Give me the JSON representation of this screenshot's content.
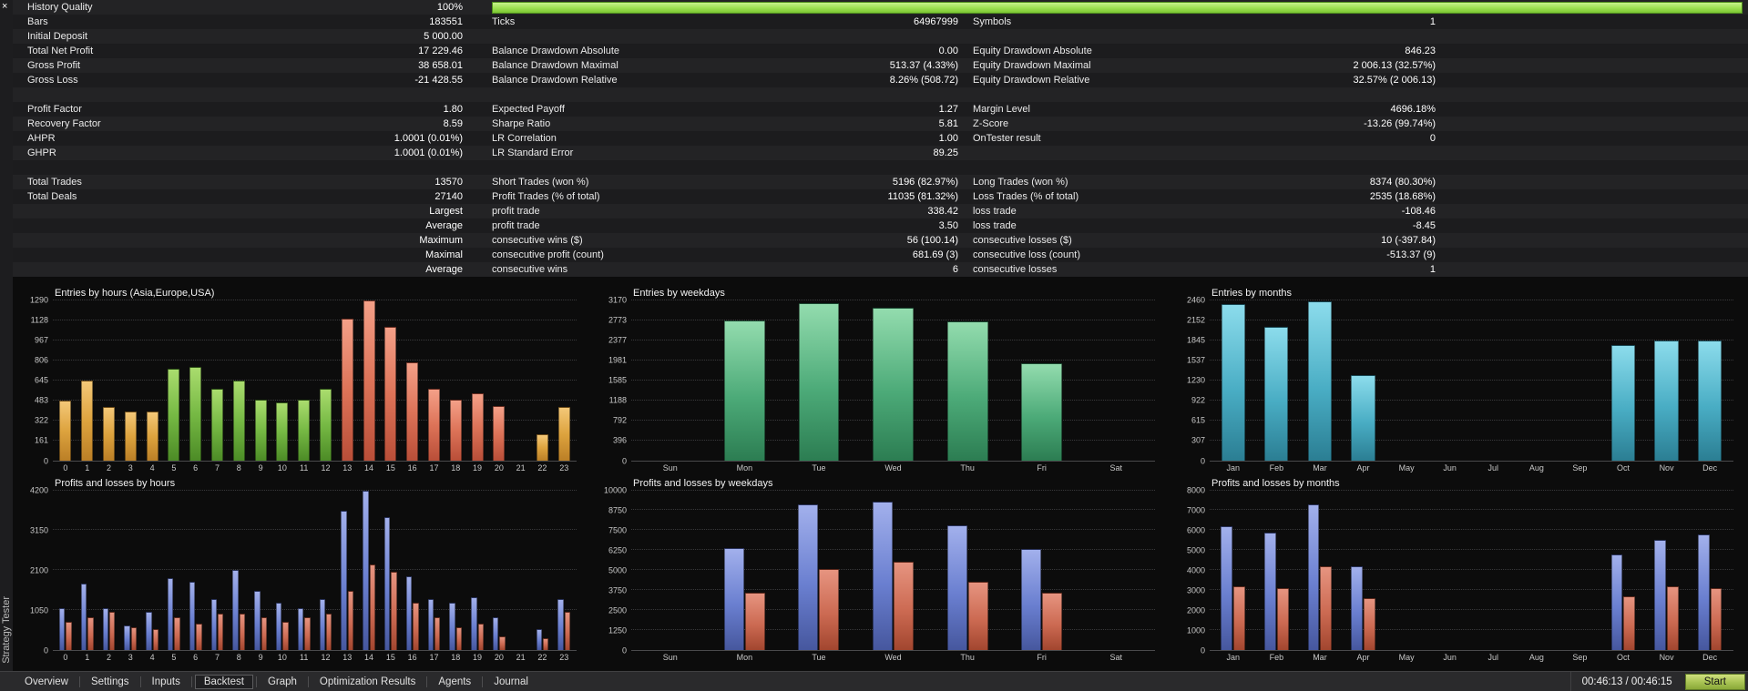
{
  "left_rail": {
    "title": "Strategy Tester",
    "close_glyph": "×"
  },
  "stats": {
    "rows": [
      {
        "quality_bar": true,
        "cells": [
          {
            "l": "History Quality",
            "v": "100%"
          }
        ]
      },
      {
        "cells": [
          {
            "l": "Bars",
            "v": "183551"
          },
          {
            "l": "Ticks",
            "v": "64967999"
          },
          {
            "l": "Symbols",
            "v": "1"
          }
        ]
      },
      {
        "cells": [
          {
            "l": "Initial Deposit",
            "v": "5 000.00"
          }
        ]
      },
      {
        "cells": [
          {
            "l": "Total Net Profit",
            "v": "17 229.46"
          },
          {
            "l": "Balance Drawdown Absolute",
            "v": "0.00"
          },
          {
            "l": "Equity Drawdown Absolute",
            "v": "846.23"
          }
        ]
      },
      {
        "cells": [
          {
            "l": "Gross Profit",
            "v": "38 658.01"
          },
          {
            "l": "Balance Drawdown Maximal",
            "v": "513.37 (4.33%)"
          },
          {
            "l": "Equity Drawdown Maximal",
            "v": "2 006.13 (32.57%)"
          }
        ]
      },
      {
        "cells": [
          {
            "l": "Gross Loss",
            "v": "-21 428.55"
          },
          {
            "l": "Balance Drawdown Relative",
            "v": "8.26% (508.72)"
          },
          {
            "l": "Equity Drawdown Relative",
            "v": "32.57% (2 006.13)"
          }
        ]
      },
      {
        "blank": true
      },
      {
        "cells": [
          {
            "l": "Profit Factor",
            "v": "1.80"
          },
          {
            "l": "Expected Payoff",
            "v": "1.27"
          },
          {
            "l": "Margin Level",
            "v": "4696.18%"
          }
        ]
      },
      {
        "cells": [
          {
            "l": "Recovery Factor",
            "v": "8.59"
          },
          {
            "l": "Sharpe Ratio",
            "v": "5.81"
          },
          {
            "l": "Z-Score",
            "v": "-13.26 (99.74%)"
          }
        ]
      },
      {
        "cells": [
          {
            "l": "AHPR",
            "v": "1.0001 (0.01%)"
          },
          {
            "l": "LR Correlation",
            "v": "1.00"
          },
          {
            "l": "OnTester result",
            "v": "0"
          }
        ]
      },
      {
        "cells": [
          {
            "l": "GHPR",
            "v": "1.0001 (0.01%)"
          },
          {
            "l": "LR Standard Error",
            "v": "89.25"
          }
        ]
      },
      {
        "blank": true
      },
      {
        "cells": [
          {
            "l": "Total Trades",
            "v": "13570"
          },
          {
            "l": "Short Trades (won %)",
            "v": "5196 (82.97%)"
          },
          {
            "l": "Long Trades (won %)",
            "v": "8374 (80.30%)"
          }
        ]
      },
      {
        "cells": [
          {
            "l": "Total Deals",
            "v": "27140"
          },
          {
            "l": "Profit Trades (% of total)",
            "v": "11035 (81.32%)"
          },
          {
            "l": "Loss Trades (% of total)",
            "v": "2535 (18.68%)"
          }
        ]
      },
      {
        "cells": [
          {
            "l": "",
            "v": "Largest"
          },
          {
            "l": "profit trade",
            "v": "338.42"
          },
          {
            "l": "loss trade",
            "v": "-108.46"
          }
        ]
      },
      {
        "cells": [
          {
            "l": "",
            "v": "Average"
          },
          {
            "l": "profit trade",
            "v": "3.50"
          },
          {
            "l": "loss trade",
            "v": "-8.45"
          }
        ]
      },
      {
        "cells": [
          {
            "l": "",
            "v": "Maximum"
          },
          {
            "l": "consecutive wins ($)",
            "v": "56 (100.14)"
          },
          {
            "l": "consecutive losses ($)",
            "v": "10 (-397.84)"
          }
        ]
      },
      {
        "cells": [
          {
            "l": "",
            "v": "Maximal"
          },
          {
            "l": "consecutive profit (count)",
            "v": "681.69 (3)"
          },
          {
            "l": "consecutive loss (count)",
            "v": "-513.37 (9)"
          }
        ]
      },
      {
        "cells": [
          {
            "l": "",
            "v": "Average"
          },
          {
            "l": "consecutive wins",
            "v": "6"
          },
          {
            "l": "consecutive losses",
            "v": "1"
          }
        ]
      }
    ]
  },
  "chart_data": [
    {
      "id": "entries-by-hours",
      "type": "bar",
      "title": "Entries by hours (Asia,Europe,USA)",
      "categories": [
        "0",
        "1",
        "2",
        "3",
        "4",
        "5",
        "6",
        "7",
        "8",
        "9",
        "10",
        "11",
        "12",
        "13",
        "14",
        "15",
        "16",
        "17",
        "18",
        "19",
        "20",
        "21",
        "22",
        "23"
      ],
      "values": [
        480,
        645,
        430,
        390,
        390,
        740,
        750,
        580,
        640,
        490,
        470,
        490,
        580,
        1140,
        1290,
        1080,
        790,
        580,
        490,
        540,
        440,
        0,
        210,
        430
      ],
      "bar_colors": [
        "asia",
        "asia",
        "asia",
        "asia",
        "asia",
        "europe",
        "europe",
        "europe",
        "europe",
        "europe",
        "europe",
        "europe",
        "europe",
        "usa",
        "usa",
        "usa",
        "usa",
        "usa",
        "usa",
        "usa",
        "usa",
        "usa",
        "asia",
        "asia"
      ],
      "ymax": 1290,
      "yticks": [
        1290,
        1128,
        967,
        806,
        645,
        483,
        322,
        161,
        0
      ]
    },
    {
      "id": "entries-by-weekdays",
      "type": "bar",
      "title": "Entries by weekdays",
      "categories": [
        "Sun",
        "Mon",
        "Tue",
        "Wed",
        "Thu",
        "Fri",
        "Sat"
      ],
      "values": [
        0,
        2780,
        3120,
        3030,
        2750,
        1920,
        0
      ],
      "color": "weekday",
      "ymax": 3170,
      "yticks": [
        3170,
        2773,
        2377,
        1981,
        1585,
        1188,
        792,
        396,
        0
      ]
    },
    {
      "id": "entries-by-months",
      "type": "bar",
      "title": "Entries by months",
      "categories": [
        "Jan",
        "Feb",
        "Mar",
        "Apr",
        "May",
        "Jun",
        "Jul",
        "Aug",
        "Sep",
        "Oct",
        "Nov",
        "Dec"
      ],
      "values": [
        2400,
        2060,
        2450,
        1310,
        0,
        0,
        0,
        0,
        0,
        1780,
        1850,
        1840
      ],
      "color": "month",
      "ymax": 2460,
      "yticks": [
        2460,
        2152,
        1845,
        1537,
        1230,
        922,
        615,
        307,
        0
      ]
    },
    {
      "id": "pl-by-hours",
      "type": "bar",
      "title": "Profits and losses by hours",
      "categories": [
        "0",
        "1",
        "2",
        "3",
        "4",
        "5",
        "6",
        "7",
        "8",
        "9",
        "10",
        "11",
        "12",
        "13",
        "14",
        "15",
        "16",
        "17",
        "18",
        "19",
        "20",
        "21",
        "22",
        "23"
      ],
      "series": [
        {
          "name": "profit",
          "color": "profit",
          "values": [
            1100,
            1750,
            1100,
            650,
            1000,
            1900,
            1800,
            1350,
            2100,
            1550,
            1250,
            1100,
            1350,
            3650,
            4200,
            3500,
            1950,
            1350,
            1250,
            1400,
            850,
            0,
            550,
            1350
          ]
        },
        {
          "name": "loss",
          "color": "loss",
          "values": [
            750,
            850,
            1000,
            600,
            550,
            850,
            700,
            950,
            950,
            850,
            750,
            850,
            950,
            1550,
            2250,
            2050,
            1250,
            850,
            600,
            700,
            350,
            0,
            300,
            1000
          ]
        }
      ],
      "ymax": 4200,
      "yticks": [
        4200,
        3150,
        2100,
        1050,
        0
      ]
    },
    {
      "id": "pl-by-weekdays",
      "type": "bar",
      "title": "Profits and losses by weekdays",
      "categories": [
        "Sun",
        "Mon",
        "Tue",
        "Wed",
        "Thu",
        "Fri",
        "Sat"
      ],
      "series": [
        {
          "name": "profit",
          "color": "profit",
          "values": [
            0,
            6400,
            9100,
            9300,
            7800,
            6300,
            0
          ]
        },
        {
          "name": "loss",
          "color": "loss",
          "values": [
            0,
            3600,
            5100,
            5500,
            4300,
            3600,
            0
          ]
        }
      ],
      "ymax": 10000,
      "yticks": [
        10000,
        8750,
        7500,
        6250,
        5000,
        3750,
        2500,
        1250,
        0
      ]
    },
    {
      "id": "pl-by-months",
      "type": "bar",
      "title": "Profits and losses by months",
      "categories": [
        "Jan",
        "Feb",
        "Mar",
        "Apr",
        "May",
        "Jun",
        "Jul",
        "Aug",
        "Sep",
        "Oct",
        "Nov",
        "Dec"
      ],
      "series": [
        {
          "name": "profit",
          "color": "profit",
          "values": [
            6200,
            5900,
            7300,
            4200,
            0,
            0,
            0,
            0,
            0,
            4800,
            5500,
            5800
          ]
        },
        {
          "name": "loss",
          "color": "loss",
          "values": [
            3200,
            3100,
            4200,
            2600,
            0,
            0,
            0,
            0,
            0,
            2700,
            3200,
            3100
          ]
        }
      ],
      "ymax": 8000,
      "yticks": [
        8000,
        7000,
        6000,
        5000,
        4000,
        3000,
        2000,
        1000,
        0
      ]
    }
  ],
  "tabs": [
    {
      "label": "Overview"
    },
    {
      "label": "Settings"
    },
    {
      "label": "Inputs"
    },
    {
      "label": "Backtest",
      "selected": true
    },
    {
      "label": "Graph"
    },
    {
      "label": "Optimization Results"
    },
    {
      "label": "Agents"
    },
    {
      "label": "Journal"
    }
  ],
  "status": {
    "time": "00:46:13 / 00:46:15",
    "start_label": "Start"
  },
  "colors": {
    "quality_bar": "#9be050",
    "session_asia": "#dda33e",
    "session_europe": "#76b944",
    "session_usa": "#dd7358",
    "entries_weekday": "#4caa78",
    "entries_month": "#49adc4",
    "profit": "#6a7fd0",
    "loss": "#cc6a52",
    "start_button": "#a7c252"
  }
}
